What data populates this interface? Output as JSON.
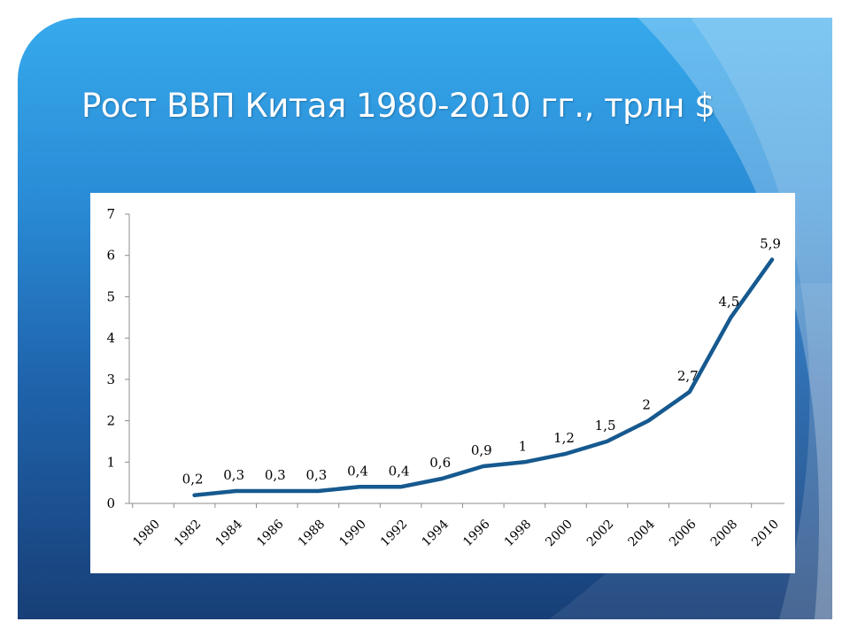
{
  "slide": {
    "title": "Рост ВВП Китая 1980-2010 гг., трлн $"
  },
  "colors": {
    "line": "#16598f",
    "background_top": "#36a9ec",
    "background_bottom": "#183f77"
  },
  "chart_data": {
    "type": "line",
    "title": "",
    "xlabel": "",
    "ylabel": "",
    "ylim": [
      0,
      7
    ],
    "yticks": [
      "0",
      "1",
      "2",
      "3",
      "4",
      "5",
      "6",
      "7"
    ],
    "categories": [
      "1980",
      "1982",
      "1984",
      "1986",
      "1988",
      "1990",
      "1992",
      "1994",
      "1996",
      "1998",
      "2000",
      "2002",
      "2004",
      "2006",
      "2008",
      "2010"
    ],
    "series": [
      {
        "values": [
          null,
          0.2,
          0.3,
          0.3,
          0.3,
          0.4,
          0.4,
          0.6,
          0.9,
          1,
          1.2,
          1.5,
          2,
          2.7,
          4.5,
          5.9
        ],
        "data_labels": [
          null,
          "0,2",
          "0,3",
          "0,3",
          "0,3",
          "0,4",
          "0,4",
          "0,6",
          "0,9",
          "1",
          "1,2",
          "1,5",
          "2",
          "2,7",
          "4,5",
          "5,9"
        ]
      }
    ],
    "grid": false,
    "legend": "none"
  }
}
